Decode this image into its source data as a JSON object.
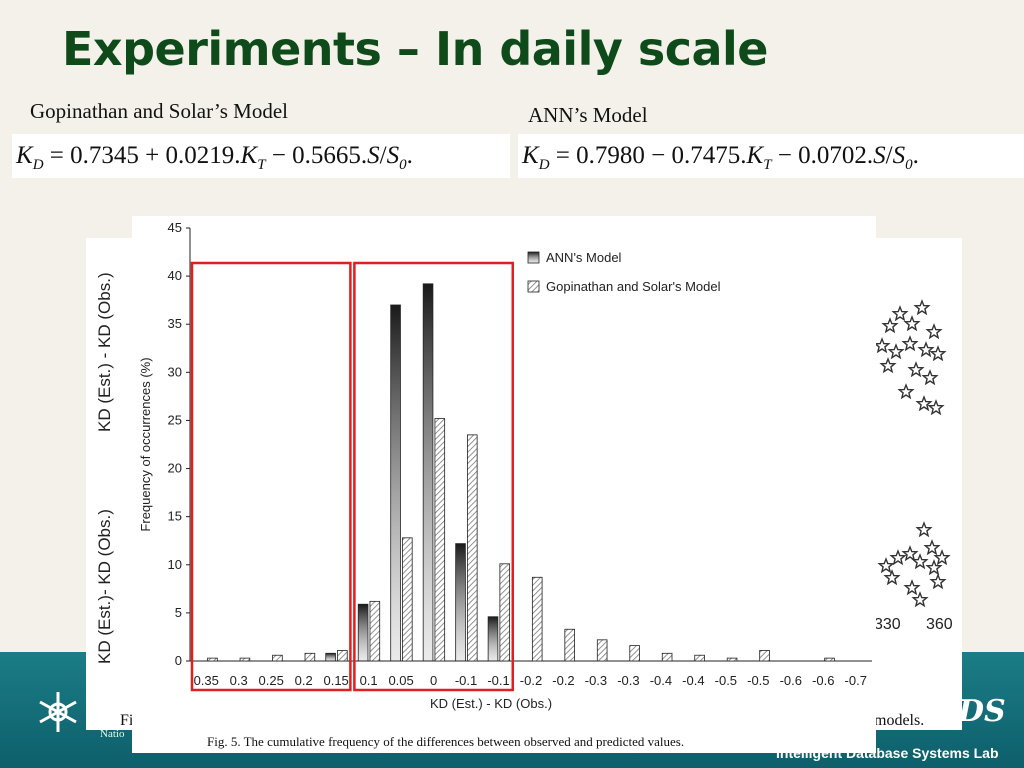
{
  "slide": {
    "title": "Experiments – In daily scale",
    "left_model_label": "Gopinathan and Solar’s Model",
    "right_model_label": "ANN’s Model",
    "left_formula": {
      "c0": "0.7345",
      "op1": "+",
      "c1": "0.0219",
      "op2": "−",
      "c2": "0.5665"
    },
    "right_formula": {
      "c0": "0.7980",
      "op1": "−",
      "c1": "0.7475",
      "op2": "−",
      "c2": "0.0702"
    }
  },
  "footer": {
    "lab_name": "Intelligent Database Systems Lab",
    "university_fragment": "Natio",
    "logo_text": "DS"
  },
  "background_figure": {
    "ylabel_top": "KD (Est.) - KD (Obs.)",
    "ylabel_bottom": "KD (Est.)- KD (Obs.)",
    "tick_330": "330",
    "tick_360": "360",
    "caption_fragment_left": "Fi",
    "caption_fragment_right": "models."
  },
  "chart_data": {
    "type": "bar",
    "caption": "Fig. 5.  The cumulative frequency of the differences between observed and predicted values.",
    "xlabel": "KD (Est.) - KD (Obs.)",
    "ylabel": "Frequency of occurrences (%)",
    "ylim": [
      0,
      45
    ],
    "yticks": [
      0,
      5,
      10,
      15,
      20,
      25,
      30,
      35,
      40,
      45
    ],
    "grid": false,
    "legend_position": "top-right",
    "categories": [
      "0.35",
      "0.3",
      "0.25",
      "0.2",
      "0.15",
      "0.1",
      "0.05",
      "0",
      "-0.1",
      "-0.1",
      "-0.2",
      "-0.2",
      "-0.3",
      "-0.3",
      "-0.4",
      "-0.4",
      "-0.5",
      "-0.5",
      "-0.6",
      "-0.6",
      "-0.7"
    ],
    "series": [
      {
        "name": "ANN's Model",
        "color": "#1a1a1a",
        "values": [
          0,
          0,
          0,
          0,
          0.8,
          5.9,
          37,
          39.2,
          12.2,
          4.6,
          0,
          0,
          0,
          0,
          0,
          0,
          0,
          0,
          0,
          0,
          0
        ]
      },
      {
        "name": "Gopinathan and Solar's Model",
        "color": "#cccccc",
        "values": [
          0.3,
          0.3,
          0.6,
          0.8,
          1.1,
          6.2,
          12.8,
          25.2,
          23.5,
          10.1,
          8.7,
          3.3,
          2.2,
          1.6,
          0.8,
          0.6,
          0.3,
          1.1,
          0,
          0.3,
          0
        ]
      }
    ],
    "highlight_boxes": [
      {
        "from_category": 0,
        "to_category": 4,
        "color": "#e02020"
      },
      {
        "from_category": 5,
        "to_category": 9,
        "color": "#e02020"
      }
    ]
  }
}
